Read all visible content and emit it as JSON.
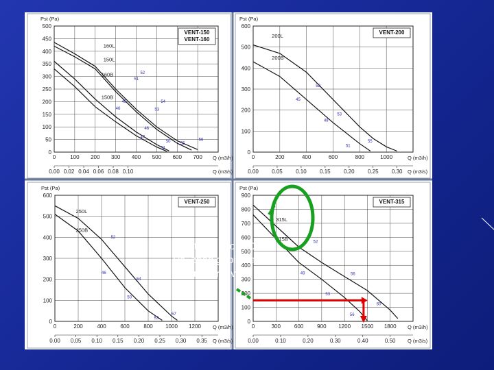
{
  "note": [
    "Pad tlaka oko 150",
    "Pa, zbog gubitaka u",
    "cijevnom razvodu"
  ],
  "colors": {
    "background": "#1b2fa3",
    "annotation_arrow": "#e00000",
    "annotation_circle": "#1aa020",
    "note_text": "#ffffff"
  },
  "chart_data": [
    {
      "type": "line",
      "model": [
        "VENT-150",
        "VENT-160"
      ],
      "ylabel": "Pst (Pa)",
      "xlabel": "Q (m3/h)",
      "x2label": "Q (m3/s)",
      "xlim": [
        0,
        800
      ],
      "ylim": [
        0,
        500
      ],
      "xticks": [
        0,
        100,
        200,
        300,
        400,
        500,
        600,
        700
      ],
      "x2ticks": [
        "0.00",
        "0.02",
        "0.04",
        "0.06",
        "0.08",
        "0.10"
      ],
      "x2step": 72,
      "yticks": [
        0,
        50,
        100,
        150,
        200,
        250,
        300,
        350,
        400,
        450,
        500
      ],
      "series": [
        {
          "name": "160L",
          "label_at": [
            240,
            415
          ],
          "x": [
            0,
            100,
            200,
            300,
            400,
            500,
            600,
            700
          ],
          "y": [
            435,
            390,
            340,
            250,
            170,
            100,
            45,
            10
          ]
        },
        {
          "name": "150L",
          "label_at": [
            240,
            360
          ],
          "x": [
            0,
            100,
            200,
            300,
            400,
            500,
            600,
            670
          ],
          "y": [
            420,
            378,
            330,
            240,
            160,
            90,
            35,
            8
          ]
        },
        {
          "name": "160B",
          "label_at": [
            230,
            300
          ],
          "x": [
            0,
            100,
            200,
            300,
            400,
            500,
            560
          ],
          "y": [
            360,
            290,
            210,
            140,
            80,
            30,
            5
          ]
        },
        {
          "name": "150B",
          "label_at": [
            230,
            210
          ],
          "x": [
            0,
            100,
            200,
            300,
            400,
            500,
            550
          ],
          "y": [
            330,
            260,
            180,
            120,
            65,
            20,
            3
          ]
        }
      ],
      "efficiency_labels": [
        {
          "text": "52",
          "x": 420,
          "y": 310
        },
        {
          "text": "51",
          "x": 390,
          "y": 285
        },
        {
          "text": "54",
          "x": 520,
          "y": 195
        },
        {
          "text": "53",
          "x": 490,
          "y": 165
        },
        {
          "text": "45",
          "x": 330,
          "y": 195
        },
        {
          "text": "46",
          "x": 300,
          "y": 168
        },
        {
          "text": "46",
          "x": 440,
          "y": 90
        },
        {
          "text": "47",
          "x": 420,
          "y": 55
        },
        {
          "text": "50",
          "x": 545,
          "y": 38
        },
        {
          "text": "51",
          "x": 520,
          "y": 12
        },
        {
          "text": "55",
          "x": 615,
          "y": 30
        },
        {
          "text": "56",
          "x": 705,
          "y": 45
        }
      ]
    },
    {
      "type": "line",
      "model": [
        "VENT-200"
      ],
      "ylabel": "Pst (Pa)",
      "xlabel": "Q (m3/h)",
      "x2label": "Q (m3/s)",
      "xlim": [
        0,
        1200
      ],
      "ylim": [
        0,
        600
      ],
      "xticks": [
        0,
        200,
        400,
        600,
        800,
        1000
      ],
      "x2ticks": [
        "0.00",
        "0.05",
        "0.10",
        "0.15",
        "0.20",
        "0.25",
        "0.30"
      ],
      "x2step": 180,
      "yticks": [
        0,
        100,
        200,
        300,
        400,
        500,
        600
      ],
      "series": [
        {
          "name": "200L",
          "label_at": [
            140,
            545
          ],
          "x": [
            0,
            200,
            400,
            600,
            800,
            900,
            1000,
            1080
          ],
          "y": [
            510,
            470,
            380,
            250,
            120,
            65,
            25,
            5
          ]
        },
        {
          "name": "200B",
          "label_at": [
            140,
            440
          ],
          "x": [
            0,
            200,
            400,
            600,
            800,
            880
          ],
          "y": [
            430,
            360,
            250,
            140,
            40,
            5
          ]
        }
      ],
      "efficiency_labels": [
        {
          "text": "52",
          "x": 470,
          "y": 310
        },
        {
          "text": "45",
          "x": 320,
          "y": 245
        },
        {
          "text": "53",
          "x": 630,
          "y": 175
        },
        {
          "text": "48",
          "x": 530,
          "y": 145
        },
        {
          "text": "55",
          "x": 860,
          "y": 45
        },
        {
          "text": "51",
          "x": 695,
          "y": 25
        }
      ]
    },
    {
      "type": "line",
      "model": [
        "VENT-250"
      ],
      "ylabel": "Pst (Pa)",
      "xlabel": "Q (m3/h)",
      "x2label": "Q (m3/s)",
      "xlim": [
        0,
        1400
      ],
      "ylim": [
        0,
        600
      ],
      "xticks": [
        0,
        200,
        400,
        600,
        800,
        1000,
        1200
      ],
      "x2ticks": [
        "0.00",
        "0.05",
        "0.10",
        "0.15",
        "0.20",
        "0.25",
        "0.30",
        "0.35"
      ],
      "x2step": 180,
      "yticks": [
        0,
        100,
        200,
        300,
        400,
        500,
        600
      ],
      "series": [
        {
          "name": "250L",
          "label_at": [
            180,
            515
          ],
          "x": [
            0,
            200,
            400,
            600,
            800,
            1000,
            1050
          ],
          "y": [
            550,
            490,
            390,
            260,
            130,
            25,
            5
          ]
        },
        {
          "name": "250B",
          "label_at": [
            180,
            425
          ],
          "x": [
            0,
            200,
            400,
            600,
            800,
            920
          ],
          "y": [
            510,
            430,
            300,
            160,
            50,
            5
          ]
        }
      ],
      "efficiency_labels": [
        {
          "text": "52",
          "x": 480,
          "y": 395
        },
        {
          "text": "46",
          "x": 400,
          "y": 225
        },
        {
          "text": "54",
          "x": 700,
          "y": 195
        },
        {
          "text": "50",
          "x": 620,
          "y": 110
        },
        {
          "text": "57",
          "x": 1000,
          "y": 30
        },
        {
          "text": "53",
          "x": 850,
          "y": 10
        }
      ]
    },
    {
      "type": "line",
      "model": [
        "VENT-315"
      ],
      "ylabel": "Pst (Pa)",
      "xlabel": "Q (m3/h)",
      "x2label": "Q (m3/s)",
      "xlim": [
        0,
        2100
      ],
      "ylim": [
        0,
        900
      ],
      "xticks": [
        0,
        300,
        600,
        900,
        1200,
        1500,
        1800
      ],
      "x2ticks": [
        "0.00",
        "0.10",
        "0.20",
        "0.30",
        "0.40",
        "0.50",
        "0.60"
      ],
      "x2step": 360,
      "yticks": [
        0,
        100,
        200,
        300,
        400,
        500,
        600,
        700,
        800,
        900
      ],
      "series": [
        {
          "name": "315L",
          "label_at": [
            300,
            715
          ],
          "x": [
            0,
            300,
            600,
            900,
            1200,
            1500,
            1800,
            1900
          ],
          "y": [
            830,
            680,
            530,
            420,
            320,
            220,
            80,
            20
          ]
        },
        {
          "name": "315B",
          "label_at": [
            300,
            575
          ],
          "x": [
            0,
            300,
            600,
            900,
            1200,
            1400,
            1500
          ],
          "y": [
            760,
            590,
            420,
            300,
            170,
            70,
            5
          ]
        }
      ],
      "efficiency_labels": [
        {
          "text": "52",
          "x": 790,
          "y": 560
        },
        {
          "text": "49",
          "x": 620,
          "y": 335
        },
        {
          "text": "56",
          "x": 1280,
          "y": 330
        },
        {
          "text": "53",
          "x": 950,
          "y": 185
        },
        {
          "text": "60",
          "x": 1620,
          "y": 115
        },
        {
          "text": "56",
          "x": 1270,
          "y": 40
        }
      ],
      "annotation": {
        "horizontal_at": 150,
        "from_x": 0,
        "to_x": 1450
      }
    }
  ]
}
